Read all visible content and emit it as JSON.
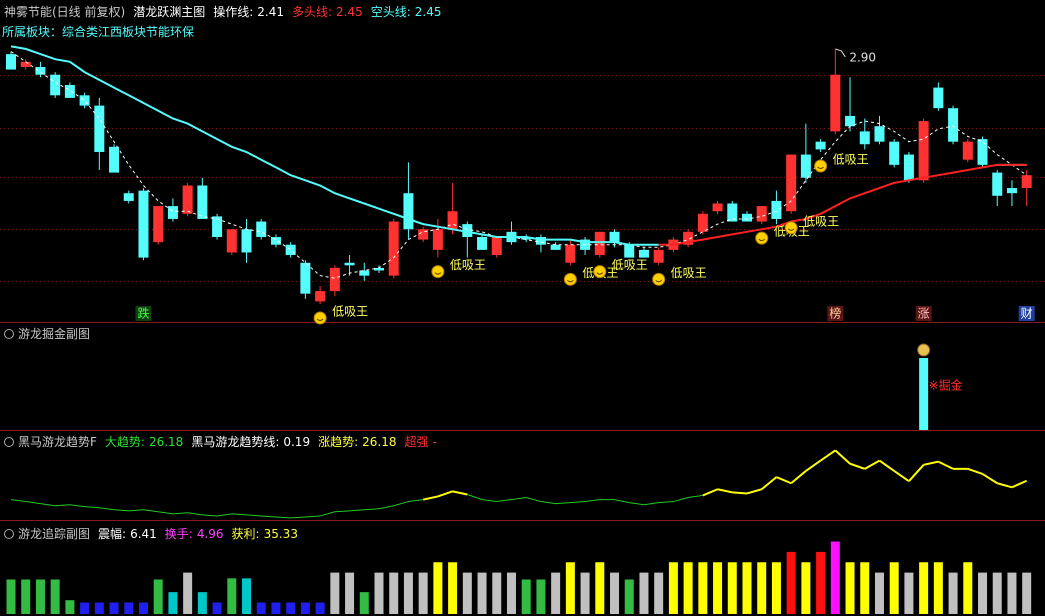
{
  "chart_data": [
    {
      "type": "candlestick",
      "title": "神雾节能(日线 前复权)",
      "indicator": "潜龙跃渊主图",
      "subtitle": "所属板块：综合类江西板块节能环保",
      "readouts": [
        {
          "label": "操作线:",
          "value": 2.41,
          "color": "#ffffff"
        },
        {
          "label": "多头线:",
          "value": 2.45,
          "color": "#ff3232"
        },
        {
          "label": "空头线:",
          "value": 2.45,
          "color": "#54fcfc"
        }
      ],
      "up_color": "#ff3232",
      "down_color": "#54fcfc",
      "ylim": [
        1.84,
        3.09
      ],
      "open": [
        2.88,
        2.83,
        2.83,
        2.8,
        2.76,
        2.72,
        2.68,
        2.52,
        2.34,
        2.35,
        2.15,
        2.29,
        2.26,
        2.37,
        2.25,
        2.11,
        2.2,
        2.23,
        2.17,
        2.14,
        2.07,
        1.92,
        1.96,
        2.07,
        2.04,
        2.05,
        2.02,
        2.34,
        2.16,
        2.12,
        2.2,
        2.22,
        2.17,
        2.1,
        2.19,
        2.17,
        2.17,
        2.14,
        2.07,
        2.16,
        2.1,
        2.19,
        2.14,
        2.12,
        2.07,
        2.12,
        2.14,
        2.19,
        2.27,
        2.3,
        2.26,
        2.23,
        2.31,
        2.27,
        2.49,
        2.54,
        2.58,
        2.64,
        2.58,
        2.6,
        2.54,
        2.49,
        2.39,
        2.75,
        2.67,
        2.47,
        2.55,
        2.42,
        2.36,
        2.36
      ],
      "high": [
        2.89,
        2.86,
        2.85,
        2.81,
        2.77,
        2.73,
        2.71,
        2.53,
        2.35,
        2.36,
        2.29,
        2.32,
        2.38,
        2.4,
        2.26,
        2.2,
        2.24,
        2.24,
        2.18,
        2.15,
        2.08,
        1.98,
        2.06,
        2.1,
        2.07,
        2.06,
        2.24,
        2.46,
        2.21,
        2.24,
        2.38,
        2.23,
        2.18,
        2.17,
        2.23,
        2.18,
        2.18,
        2.15,
        2.16,
        2.17,
        2.19,
        2.2,
        2.15,
        2.13,
        2.13,
        2.17,
        2.2,
        2.27,
        2.31,
        2.31,
        2.27,
        2.29,
        2.35,
        2.49,
        2.61,
        2.55,
        2.9,
        2.79,
        2.63,
        2.64,
        2.55,
        2.5,
        2.63,
        2.77,
        2.68,
        2.55,
        2.56,
        2.43,
        2.39,
        2.43
      ],
      "low": [
        2.82,
        2.82,
        2.79,
        2.71,
        2.71,
        2.67,
        2.43,
        2.42,
        2.3,
        2.08,
        2.14,
        2.23,
        2.25,
        2.24,
        2.16,
        2.1,
        2.07,
        2.16,
        2.13,
        2.09,
        1.93,
        1.91,
        1.94,
        2.02,
        2.0,
        2.03,
        2.01,
        2.16,
        2.15,
        2.09,
        2.18,
        2.09,
        2.12,
        2.09,
        2.14,
        2.15,
        2.11,
        2.12,
        2.06,
        2.1,
        2.09,
        2.13,
        2.09,
        2.09,
        2.06,
        2.11,
        2.13,
        2.18,
        2.26,
        2.23,
        2.23,
        2.22,
        2.22,
        2.26,
        2.38,
        2.5,
        2.57,
        2.58,
        2.51,
        2.53,
        2.44,
        2.38,
        2.38,
        2.66,
        2.53,
        2.46,
        2.44,
        2.29,
        2.29,
        2.29
      ],
      "close": [
        2.82,
        2.85,
        2.8,
        2.72,
        2.71,
        2.68,
        2.5,
        2.42,
        2.31,
        2.09,
        2.29,
        2.24,
        2.37,
        2.24,
        2.17,
        2.2,
        2.11,
        2.17,
        2.14,
        2.1,
        1.95,
        1.96,
        2.05,
        2.06,
        2.02,
        2.04,
        2.23,
        2.2,
        2.2,
        2.2,
        2.27,
        2.17,
        2.12,
        2.17,
        2.15,
        2.16,
        2.14,
        2.12,
        2.14,
        2.12,
        2.19,
        2.15,
        2.09,
        2.09,
        2.12,
        2.16,
        2.19,
        2.26,
        2.3,
        2.23,
        2.23,
        2.29,
        2.24,
        2.49,
        2.4,
        2.51,
        2.8,
        2.6,
        2.53,
        2.54,
        2.45,
        2.39,
        2.62,
        2.67,
        2.54,
        2.54,
        2.45,
        2.33,
        2.34,
        2.41
      ],
      "high_labels": [
        null,
        null,
        null,
        null,
        null,
        null,
        null,
        null,
        null,
        null,
        null,
        null,
        null,
        null,
        null,
        null,
        null,
        null,
        null,
        null,
        null,
        null,
        null,
        null,
        null,
        null,
        null,
        null,
        null,
        null,
        null,
        null,
        null,
        null,
        null,
        null,
        null,
        null,
        null,
        null,
        null,
        null,
        null,
        null,
        null,
        null,
        null,
        null,
        null,
        null,
        null,
        null,
        null,
        null,
        null,
        null,
        "2.90",
        null,
        null,
        null,
        null,
        null,
        null,
        null,
        null,
        null,
        null,
        null,
        null,
        null
      ],
      "lines": [
        {
          "color": "#ffffff",
          "dash": true,
          "values": [
            2.89,
            2.85,
            2.81,
            2.77,
            2.74,
            2.7,
            2.63,
            2.54,
            2.45,
            2.37,
            2.31,
            2.27,
            2.27,
            2.25,
            2.24,
            2.22,
            2.2,
            2.19,
            2.16,
            2.12,
            2.07,
            2.02,
            2.01,
            2.03,
            2.04,
            2.05,
            2.09,
            2.16,
            2.19,
            2.2,
            2.22,
            2.2,
            2.19,
            2.17,
            2.17,
            2.16,
            2.15,
            2.14,
            2.14,
            2.14,
            2.14,
            2.14,
            2.14,
            2.13,
            2.13,
            2.14,
            2.16,
            2.19,
            2.22,
            2.24,
            2.24,
            2.25,
            2.27,
            2.31,
            2.39,
            2.47,
            2.54,
            2.6,
            2.62,
            2.61,
            2.58,
            2.54,
            2.55,
            2.59,
            2.6,
            2.56,
            2.54,
            2.49,
            2.45,
            2.41
          ]
        },
        {
          "color": "#54fcfc",
          "dash": false,
          "values": [
            2.91,
            2.9,
            2.88,
            2.86,
            2.85,
            2.81,
            2.78,
            2.75,
            2.72,
            2.69,
            2.66,
            2.63,
            2.61,
            2.58,
            2.55,
            2.52,
            2.5,
            2.47,
            2.44,
            2.41,
            2.39,
            2.37,
            2.34,
            2.32,
            2.3,
            2.28,
            2.26,
            2.24,
            2.22,
            2.21,
            2.2,
            2.19,
            2.18,
            2.17,
            2.17,
            2.17,
            2.16,
            2.16,
            2.16,
            2.15,
            2.15,
            2.15,
            2.14,
            2.14,
            2.14,
            null,
            null,
            null,
            null,
            null,
            null,
            null,
            null,
            null,
            null,
            null,
            null,
            null,
            null,
            null,
            null,
            null,
            null,
            null,
            null,
            null,
            null,
            2.45,
            2.45,
            2.45
          ]
        },
        {
          "color": "#ff2020",
          "dash": false,
          "values": [
            null,
            null,
            null,
            null,
            null,
            null,
            null,
            null,
            null,
            null,
            null,
            null,
            null,
            null,
            null,
            null,
            null,
            null,
            null,
            null,
            null,
            null,
            null,
            null,
            null,
            null,
            null,
            null,
            null,
            null,
            null,
            null,
            null,
            null,
            null,
            null,
            null,
            null,
            null,
            null,
            null,
            null,
            null,
            null,
            2.14,
            2.14,
            2.15,
            2.16,
            2.17,
            2.18,
            2.19,
            2.2,
            2.21,
            2.23,
            2.24,
            2.26,
            2.29,
            2.32,
            2.34,
            2.36,
            2.38,
            2.39,
            2.4,
            2.41,
            2.42,
            2.43,
            2.44,
            2.45,
            2.45,
            2.45
          ]
        }
      ],
      "signals": [
        null,
        null,
        null,
        null,
        null,
        null,
        null,
        null,
        null,
        null,
        null,
        null,
        null,
        null,
        null,
        null,
        null,
        null,
        null,
        null,
        null,
        "低吸王",
        null,
        null,
        null,
        null,
        null,
        null,
        null,
        "低吸王",
        null,
        null,
        null,
        null,
        null,
        null,
        null,
        null,
        "低吸王",
        null,
        "低吸王",
        null,
        null,
        null,
        "低吸王",
        null,
        null,
        null,
        null,
        null,
        null,
        "低吸王",
        null,
        "低吸王",
        null,
        "低吸王",
        null,
        null,
        null,
        null,
        null,
        null,
        null,
        null,
        null,
        null,
        null,
        null,
        null,
        null
      ],
      "events": [
        null,
        null,
        null,
        null,
        null,
        null,
        null,
        null,
        null,
        {
          "label": "跌",
          "color": "#123d12",
          "text_color": "#40ff40"
        },
        null,
        null,
        null,
        null,
        null,
        null,
        null,
        null,
        null,
        null,
        null,
        null,
        null,
        null,
        null,
        null,
        null,
        null,
        null,
        null,
        null,
        null,
        null,
        null,
        null,
        null,
        null,
        null,
        null,
        null,
        null,
        null,
        null,
        null,
        null,
        null,
        null,
        null,
        null,
        null,
        null,
        null,
        null,
        null,
        null,
        null,
        {
          "label": "榜",
          "color": "#5a1414",
          "text_color": "#ffd0a0"
        },
        null,
        null,
        null,
        null,
        null,
        {
          "label": "涨",
          "color": "#5a1414",
          "text_color": "#ffc0c0"
        },
        null,
        null,
        null,
        null,
        null,
        null,
        {
          "label": "财",
          "color": "#2040a0",
          "text_color": "#ffffff"
        }
      ]
    },
    {
      "type": "bar",
      "title": "游龙掘金副图",
      "ylim": [
        0,
        1.5
      ],
      "color": "#54fcfc",
      "values": [
        null,
        null,
        null,
        null,
        null,
        null,
        null,
        null,
        null,
        null,
        null,
        null,
        null,
        null,
        null,
        null,
        null,
        null,
        null,
        null,
        null,
        null,
        null,
        null,
        null,
        null,
        null,
        null,
        null,
        null,
        null,
        null,
        null,
        null,
        null,
        null,
        null,
        null,
        null,
        null,
        null,
        null,
        null,
        null,
        null,
        null,
        null,
        null,
        null,
        null,
        null,
        null,
        null,
        null,
        null,
        null,
        null,
        null,
        null,
        null,
        null,
        null,
        1,
        null,
        null,
        null,
        null,
        null,
        null,
        null
      ],
      "labels": [
        null,
        null,
        null,
        null,
        null,
        null,
        null,
        null,
        null,
        null,
        null,
        null,
        null,
        null,
        null,
        null,
        null,
        null,
        null,
        null,
        null,
        null,
        null,
        null,
        null,
        null,
        null,
        null,
        null,
        null,
        null,
        null,
        null,
        null,
        null,
        null,
        null,
        null,
        null,
        null,
        null,
        null,
        null,
        null,
        null,
        null,
        null,
        null,
        null,
        null,
        null,
        null,
        null,
        null,
        null,
        null,
        null,
        null,
        null,
        null,
        null,
        null,
        "※掘金",
        null,
        null,
        null,
        null,
        null,
        null,
        null
      ],
      "label_color": "#ff3030"
    },
    {
      "type": "line",
      "title": "黑马游龙趋势F",
      "readouts": [
        {
          "label": "大趋势:",
          "value": 26.18,
          "color": "#30e030"
        },
        {
          "label": "黑马游龙趋势线:",
          "value": 0.19,
          "color": "#ffffff"
        },
        {
          "label": "涨趋势:",
          "value": 26.18,
          "color": "#ffff40"
        },
        {
          "label": "超强",
          "value": "-",
          "color": "#ff3030"
        }
      ],
      "ylim": [
        0,
        60
      ],
      "values": [
        13.6,
        12.3,
        10.9,
        9.5,
        10.2,
        8.9,
        8.2,
        6.8,
        6.1,
        6.8,
        5.5,
        4.1,
        4.8,
        3.4,
        2.7,
        4.1,
        3.4,
        2.7,
        2.0,
        1.4,
        2.0,
        2.7,
        5.5,
        6.1,
        6.8,
        7.5,
        9.5,
        12.3,
        13.6,
        15.7,
        19.1,
        17.0,
        13.6,
        12.3,
        13.6,
        15.0,
        12.3,
        10.9,
        11.6,
        12.3,
        13.6,
        13.6,
        11.6,
        10.2,
        11.6,
        12.3,
        15.0,
        16.4,
        20.5,
        18.4,
        17.7,
        20.5,
        28.6,
        24.5,
        32.7,
        39.6,
        46.4,
        37.5,
        34.1,
        39.6,
        32.7,
        25.9,
        36.8,
        38.9,
        34.1,
        34.1,
        30.7,
        24.5,
        21.8,
        26.18
      ],
      "colors": [
        "#22cc22",
        "#22cc22",
        "#22cc22",
        "#22cc22",
        "#22cc22",
        "#22cc22",
        "#22cc22",
        "#22cc22",
        "#22cc22",
        "#22cc22",
        "#22cc22",
        "#22cc22",
        "#22cc22",
        "#22cc22",
        "#22cc22",
        "#22cc22",
        "#22cc22",
        "#22cc22",
        "#22cc22",
        "#22cc22",
        "#22cc22",
        "#22cc22",
        "#22cc22",
        "#22cc22",
        "#22cc22",
        "#22cc22",
        "#22cc22",
        "#22cc22",
        "#22cc22",
        "#ffff00",
        "#ffff00",
        "#ffff00",
        "#22cc22",
        "#22cc22",
        "#22cc22",
        "#22cc22",
        "#22cc22",
        "#22cc22",
        "#22cc22",
        "#22cc22",
        "#22cc22",
        "#22cc22",
        "#22cc22",
        "#22cc22",
        "#22cc22",
        "#22cc22",
        "#22cc22",
        "#22cc22",
        "#ffff00",
        "#ffff00",
        "#ffff00",
        "#ffff00",
        "#ffff00",
        "#ffff00",
        "#ffff00",
        "#ffff00",
        "#ffff00",
        "#ffff00",
        "#ffff00",
        "#ffff00",
        "#ffff00",
        "#ffff00",
        "#ffff00",
        "#ffff00",
        "#ffff00",
        "#ffff00",
        "#ffff00",
        "#ffff00",
        "#ffff00",
        "#ffff00"
      ]
    },
    {
      "type": "bar",
      "title": "游龙追踪副图",
      "readouts": [
        {
          "label": "震幅:",
          "value": 6.41,
          "color": "#ffffff"
        },
        {
          "label": "换手:",
          "value": 4.96,
          "color": "#ff40ff"
        },
        {
          "label": "获利:",
          "value": 35.33,
          "color": "#ffff40"
        }
      ],
      "ylim": [
        0,
        80
      ],
      "values": [
        30,
        30,
        30,
        30,
        12,
        10,
        10,
        10,
        10,
        10,
        30,
        19,
        36,
        19,
        10,
        31,
        31,
        10,
        10,
        10,
        10,
        10,
        36,
        36,
        19,
        36,
        36,
        36,
        36,
        45,
        45,
        36,
        36,
        36,
        36,
        30,
        30,
        36,
        45,
        36,
        45,
        36,
        30,
        36,
        36,
        45,
        45,
        45,
        45,
        45,
        45,
        45,
        45,
        54,
        45,
        54,
        63,
        45,
        45,
        36,
        45,
        36,
        45,
        45,
        36,
        45,
        36,
        36,
        36,
        36
      ],
      "colors": [
        "#33bb44",
        "#33bb44",
        "#33bb44",
        "#33bb44",
        "#33bb44",
        "#2020ee",
        "#2020ee",
        "#2020ee",
        "#2020ee",
        "#2020ee",
        "#33bb44",
        "#00c8c8",
        "#c0c0c0",
        "#00c8c8",
        "#2020ee",
        "#33bb44",
        "#00c8c8",
        "#2020ee",
        "#2020ee",
        "#2020ee",
        "#2020ee",
        "#2020ee",
        "#c0c0c0",
        "#c0c0c0",
        "#33bb44",
        "#c0c0c0",
        "#c0c0c0",
        "#c0c0c0",
        "#c0c0c0",
        "#ffff00",
        "#ffff00",
        "#c0c0c0",
        "#c0c0c0",
        "#c0c0c0",
        "#c0c0c0",
        "#33bb44",
        "#33bb44",
        "#c0c0c0",
        "#ffff00",
        "#c0c0c0",
        "#ffff00",
        "#c0c0c0",
        "#33bb44",
        "#c0c0c0",
        "#c0c0c0",
        "#ffff00",
        "#ffff00",
        "#ffff00",
        "#ffff00",
        "#ffff00",
        "#ffff00",
        "#ffff00",
        "#ffff00",
        "#ff1010",
        "#ffff00",
        "#ff1010",
        "#ff10ff",
        "#ffff00",
        "#ffff00",
        "#c0c0c0",
        "#ffff00",
        "#c0c0c0",
        "#ffff00",
        "#ffff00",
        "#c0c0c0",
        "#ffff00",
        "#c0c0c0",
        "#c0c0c0",
        "#c0c0c0",
        "#c0c0c0"
      ]
    }
  ]
}
